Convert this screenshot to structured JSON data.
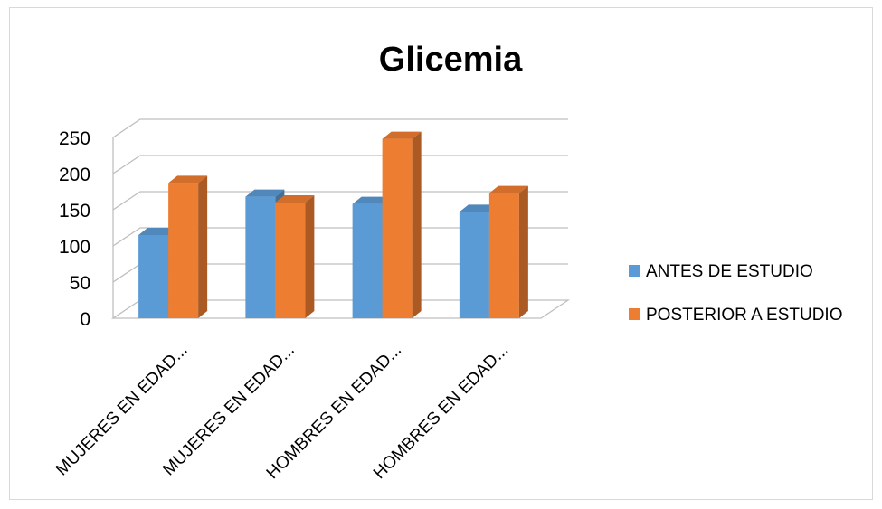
{
  "chart_data": {
    "type": "bar",
    "title": "Glicemia",
    "categories": [
      "MUJERES EN EDAD...",
      "MUJERES EN EDAD...",
      "HOMBRES EN EDAD...",
      "HOMBRES EN EDAD..."
    ],
    "series": [
      {
        "name": "ANTES DE ESTUDIO",
        "values": [
          115,
          168,
          158,
          147
        ],
        "color": "#5b9bd5"
      },
      {
        "name": "POSTERIOR A ESTUDIO",
        "values": [
          187,
          160,
          248,
          173
        ],
        "color": "#ed7d31"
      }
    ],
    "yticks": [
      "0",
      "50",
      "100",
      "150",
      "200",
      "250"
    ],
    "ylim": [
      0,
      250
    ],
    "grid": true,
    "legend": "right",
    "xlabel": "",
    "ylabel": ""
  }
}
